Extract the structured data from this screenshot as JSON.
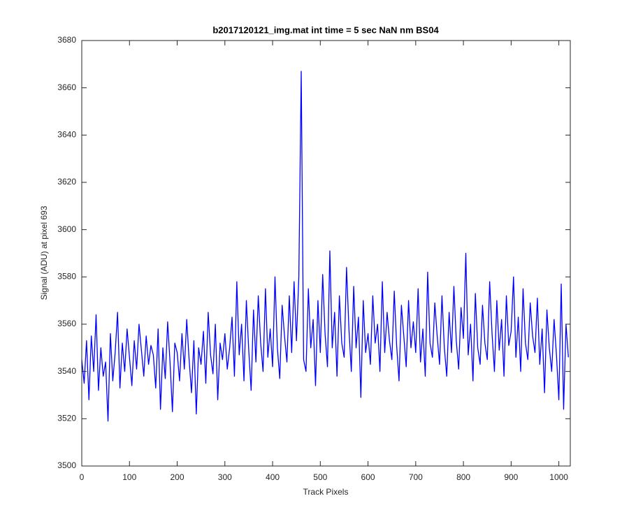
{
  "chart_data": {
    "type": "line",
    "title": "b2017120121_img.mat int time = 5 sec  NaN nm BS04",
    "x_label": "Track Pixels",
    "y_label": "Signal (ADU) at pixel 693",
    "xlim": [
      0,
      1024
    ],
    "ylim": [
      3500,
      3680
    ],
    "xticks": [
      0,
      100,
      200,
      300,
      400,
      500,
      600,
      700,
      800,
      900,
      1000
    ],
    "yticks": [
      3500,
      3520,
      3540,
      3560,
      3580,
      3600,
      3620,
      3640,
      3660,
      3680
    ],
    "grid": false,
    "x": [
      0,
      5,
      10,
      15,
      20,
      25,
      30,
      35,
      40,
      45,
      50,
      55,
      60,
      65,
      70,
      75,
      80,
      85,
      90,
      95,
      100,
      105,
      110,
      115,
      120,
      125,
      130,
      135,
      140,
      145,
      150,
      155,
      160,
      165,
      170,
      175,
      180,
      185,
      190,
      195,
      200,
      205,
      210,
      215,
      220,
      225,
      230,
      235,
      240,
      245,
      250,
      255,
      260,
      265,
      270,
      275,
      280,
      285,
      290,
      295,
      300,
      305,
      310,
      315,
      320,
      325,
      330,
      335,
      340,
      345,
      350,
      355,
      360,
      365,
      370,
      375,
      380,
      385,
      390,
      395,
      400,
      405,
      410,
      415,
      420,
      425,
      430,
      435,
      440,
      445,
      450,
      455,
      460,
      465,
      470,
      475,
      480,
      485,
      490,
      495,
      500,
      505,
      510,
      515,
      520,
      525,
      530,
      535,
      540,
      545,
      550,
      555,
      560,
      565,
      570,
      575,
      580,
      585,
      590,
      595,
      600,
      605,
      610,
      615,
      620,
      625,
      630,
      635,
      640,
      645,
      650,
      655,
      660,
      665,
      670,
      675,
      680,
      685,
      690,
      695,
      700,
      705,
      710,
      715,
      720,
      725,
      730,
      735,
      740,
      745,
      750,
      755,
      760,
      765,
      770,
      775,
      780,
      785,
      790,
      795,
      800,
      805,
      810,
      815,
      820,
      825,
      830,
      835,
      840,
      845,
      850,
      855,
      860,
      865,
      870,
      875,
      880,
      885,
      890,
      895,
      900,
      905,
      910,
      915,
      920,
      925,
      930,
      935,
      940,
      945,
      950,
      955,
      960,
      965,
      970,
      975,
      980,
      985,
      990,
      995,
      1000,
      1005,
      1010,
      1015,
      1020
    ],
    "series": [
      {
        "color": "#0000ff",
        "values": [
          3545,
          3535,
          3553,
          3528,
          3555,
          3540,
          3564,
          3532,
          3550,
          3538,
          3544,
          3519,
          3556,
          3536,
          3548,
          3565,
          3533,
          3552,
          3540,
          3558,
          3546,
          3534,
          3553,
          3541,
          3560,
          3549,
          3538,
          3555,
          3543,
          3551,
          3547,
          3533,
          3558,
          3524,
          3550,
          3537,
          3561,
          3544,
          3523,
          3552,
          3548,
          3536,
          3556,
          3541,
          3562,
          3545,
          3531,
          3553,
          3522,
          3550,
          3543,
          3557,
          3535,
          3565,
          3547,
          3539,
          3560,
          3528,
          3552,
          3545,
          3556,
          3541,
          3550,
          3563,
          3538,
          3578,
          3547,
          3560,
          3536,
          3570,
          3549,
          3532,
          3566,
          3544,
          3572,
          3552,
          3540,
          3575,
          3546,
          3558,
          3542,
          3580,
          3550,
          3537,
          3568,
          3555,
          3544,
          3572,
          3548,
          3578,
          3553,
          3580,
          3667,
          3545,
          3540,
          3575,
          3550,
          3562,
          3534,
          3570,
          3548,
          3581,
          3556,
          3542,
          3591,
          3550,
          3565,
          3538,
          3572,
          3552,
          3546,
          3584,
          3558,
          3540,
          3576,
          3550,
          3563,
          3529,
          3570,
          3548,
          3556,
          3543,
          3572,
          3552,
          3560,
          3540,
          3578,
          3548,
          3565,
          3553,
          3545,
          3574,
          3551,
          3536,
          3568,
          3555,
          3542,
          3570,
          3550,
          3561,
          3548,
          3575,
          3544,
          3558,
          3538,
          3582,
          3552,
          3546,
          3569,
          3555,
          3543,
          3572,
          3550,
          3538,
          3565,
          3548,
          3576,
          3553,
          3541,
          3567,
          3554,
          3590,
          3547,
          3560,
          3536,
          3573,
          3550,
          3543,
          3568,
          3552,
          3545,
          3578,
          3556,
          3540,
          3570,
          3549,
          3562,
          3538,
          3572,
          3551,
          3557,
          3580,
          3546,
          3563,
          3540,
          3575,
          3552,
          3545,
          3569,
          3555,
          3548,
          3571,
          3543,
          3558,
          3531,
          3566,
          3550,
          3540,
          3562,
          3547,
          3528,
          3577,
          3524,
          3560,
          3546
        ]
      }
    ]
  }
}
